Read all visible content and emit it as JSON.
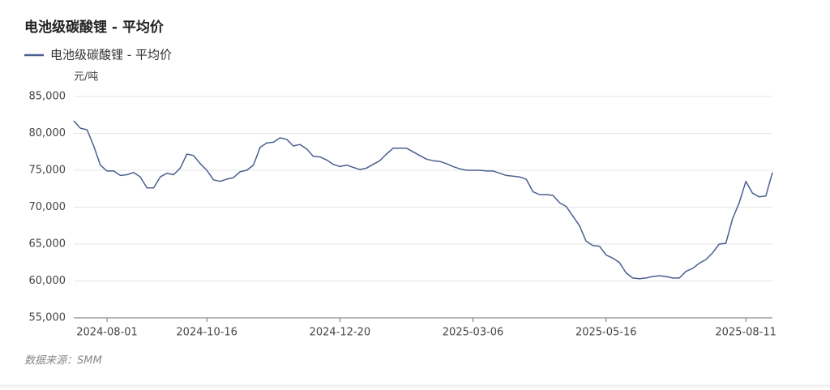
{
  "chart_data": {
    "type": "line",
    "title": "电池级碳酸锂 - 平均价",
    "y_unit": "元/吨",
    "source": "数据来源：SMM",
    "categories": [
      null,
      null,
      null,
      null,
      null,
      "2024-08-01",
      null,
      null,
      null,
      null,
      null,
      null,
      null,
      null,
      null,
      null,
      null,
      null,
      null,
      null,
      "2024-10-16",
      null,
      null,
      null,
      null,
      null,
      null,
      null,
      null,
      null,
      null,
      null,
      null,
      null,
      null,
      null,
      null,
      null,
      null,
      null,
      "2024-12-20",
      null,
      null,
      null,
      null,
      null,
      null,
      null,
      null,
      null,
      null,
      null,
      null,
      null,
      null,
      null,
      null,
      null,
      null,
      null,
      "2025-03-06",
      null,
      null,
      null,
      null,
      null,
      null,
      null,
      null,
      null,
      null,
      null,
      null,
      null,
      null,
      null,
      null,
      null,
      null,
      null,
      "2025-05-16",
      null,
      null,
      null,
      null,
      null,
      null,
      null,
      null,
      null,
      null,
      null,
      null,
      null,
      null,
      null,
      null,
      null,
      null,
      null,
      null,
      "2025-08-11",
      null,
      null,
      null,
      null
    ],
    "series": [
      {
        "name": "电池级碳酸锂 - 平均价",
        "color": "#4a5f8f",
        "values": [
          81700,
          80700,
          80500,
          78300,
          75700,
          74900,
          74900,
          74300,
          74400,
          74700,
          74100,
          72600,
          72600,
          74100,
          74600,
          74400,
          75300,
          77200,
          77000,
          75900,
          75000,
          73700,
          73500,
          73800,
          74000,
          74800,
          75000,
          75700,
          78100,
          78700,
          78800,
          79400,
          79200,
          78300,
          78500,
          77900,
          76900,
          76800,
          76400,
          75800,
          75500,
          75700,
          75400,
          75100,
          75300,
          75800,
          76300,
          77200,
          78000,
          78000,
          78000,
          77500,
          77000,
          76500,
          76300,
          76200,
          75900,
          75500,
          75200,
          75000,
          75000,
          75000,
          74900,
          74900,
          74600,
          74300,
          74200,
          74100,
          73800,
          72100,
          71700,
          71700,
          71600,
          70600,
          70100,
          68800,
          67500,
          65400,
          64800,
          64700,
          63500,
          63100,
          62500,
          61100,
          60400,
          60300,
          60400,
          60600,
          60700,
          60600,
          60400,
          60400,
          61300,
          61700,
          62400,
          62900,
          63800,
          65000,
          65100,
          68400,
          70600,
          73500,
          71900,
          71400,
          71500,
          74700
        ]
      }
    ],
    "ylim": [
      55000,
      85000
    ],
    "yticks": [
      {
        "value": 55000,
        "label": "55,000"
      },
      {
        "value": 60000,
        "label": "60,000"
      },
      {
        "value": 65000,
        "label": "65,000"
      },
      {
        "value": 70000,
        "label": "70,000"
      },
      {
        "value": 75000,
        "label": "75,000"
      },
      {
        "value": 80000,
        "label": "80,000"
      },
      {
        "value": 85000,
        "label": "85,000"
      }
    ],
    "grid": true
  }
}
